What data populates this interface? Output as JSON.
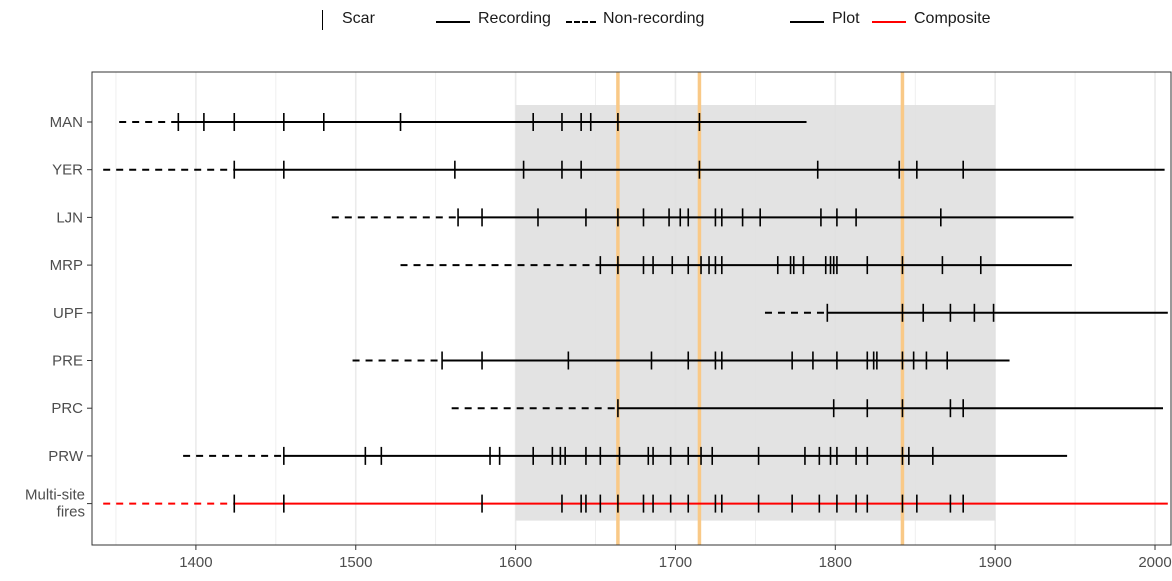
{
  "legend": {
    "scar_label": "Scar",
    "recording_label": "Recording",
    "nonrecording_label": "Non-recording",
    "plot_label": "Plot",
    "composite_label": "Composite"
  },
  "colors": {
    "plot": "#000000",
    "composite": "#ff0000",
    "highlight_band": "#e0e0e0",
    "highlight_lines": "#f9c987",
    "grid": "#ebebeb"
  },
  "chart_data": {
    "type": "fire-history timeline",
    "xlim": [
      1335,
      2010
    ],
    "xticks": [
      1400,
      1500,
      1600,
      1700,
      1800,
      1900,
      2000
    ],
    "shaded_range": [
      1600,
      1900
    ],
    "highlight_years": [
      1664,
      1715,
      1842
    ],
    "grid": true,
    "series": [
      {
        "label": "MAN",
        "nonrec": [
          1352,
          1389
        ],
        "rec": [
          1389,
          1782
        ],
        "color": "plot",
        "scars": [
          1389,
          1405,
          1424,
          1455,
          1480,
          1528,
          1611,
          1629,
          1641,
          1647,
          1664,
          1715
        ]
      },
      {
        "label": "YER",
        "nonrec": [
          1342,
          1424
        ],
        "rec": [
          1424,
          2006
        ],
        "color": "plot",
        "scars": [
          1424,
          1455,
          1562,
          1605,
          1629,
          1641,
          1715,
          1789,
          1840,
          1851,
          1880
        ]
      },
      {
        "label": "LJN",
        "nonrec": [
          1485,
          1564
        ],
        "rec": [
          1564,
          1949
        ],
        "color": "plot",
        "scars": [
          1564,
          1579,
          1614,
          1644,
          1664,
          1680,
          1696,
          1703,
          1708,
          1725,
          1729,
          1742,
          1753,
          1791,
          1801,
          1813,
          1866
        ]
      },
      {
        "label": "MRP",
        "nonrec": [
          1528,
          1653
        ],
        "rec": [
          1653,
          1948
        ],
        "color": "plot",
        "scars": [
          1653,
          1664,
          1680,
          1686,
          1698,
          1708,
          1716,
          1721,
          1725,
          1729,
          1764,
          1772,
          1774,
          1780,
          1794,
          1797,
          1799,
          1801,
          1820,
          1842,
          1867,
          1891
        ]
      },
      {
        "label": "UPF",
        "nonrec": [
          1756,
          1795
        ],
        "rec": [
          1795,
          2008
        ],
        "color": "plot",
        "scars": [
          1795,
          1842,
          1855,
          1872,
          1887,
          1899
        ]
      },
      {
        "label": "PRE",
        "nonrec": [
          1498,
          1554
        ],
        "rec": [
          1554,
          1909
        ],
        "color": "plot",
        "scars": [
          1554,
          1579,
          1633,
          1685,
          1708,
          1725,
          1729,
          1773,
          1786,
          1801,
          1820,
          1824,
          1826,
          1842,
          1849,
          1857,
          1870
        ]
      },
      {
        "label": "PRC",
        "nonrec": [
          1560,
          1664
        ],
        "rec": [
          1664,
          2005
        ],
        "color": "plot",
        "scars": [
          1664,
          1799,
          1820,
          1842,
          1872,
          1880
        ]
      },
      {
        "label": "PRW",
        "nonrec": [
          1392,
          1455
        ],
        "rec": [
          1455,
          1945
        ],
        "color": "plot",
        "scars": [
          1455,
          1506,
          1516,
          1584,
          1590,
          1611,
          1623,
          1628,
          1631,
          1644,
          1653,
          1665,
          1683,
          1686,
          1697,
          1708,
          1716,
          1723,
          1752,
          1781,
          1790,
          1797,
          1801,
          1813,
          1820,
          1842,
          1846,
          1861
        ]
      },
      {
        "label": "Multi-site fires",
        "label_lines": [
          "Multi-site",
          "fires"
        ],
        "nonrec": [
          1342,
          1424
        ],
        "rec": [
          1424,
          2008
        ],
        "color": "composite",
        "scars": [
          1424,
          1455,
          1579,
          1629,
          1641,
          1644,
          1653,
          1664,
          1680,
          1686,
          1697,
          1708,
          1725,
          1729,
          1752,
          1773,
          1790,
          1801,
          1813,
          1820,
          1842,
          1851,
          1872,
          1880
        ]
      }
    ]
  }
}
